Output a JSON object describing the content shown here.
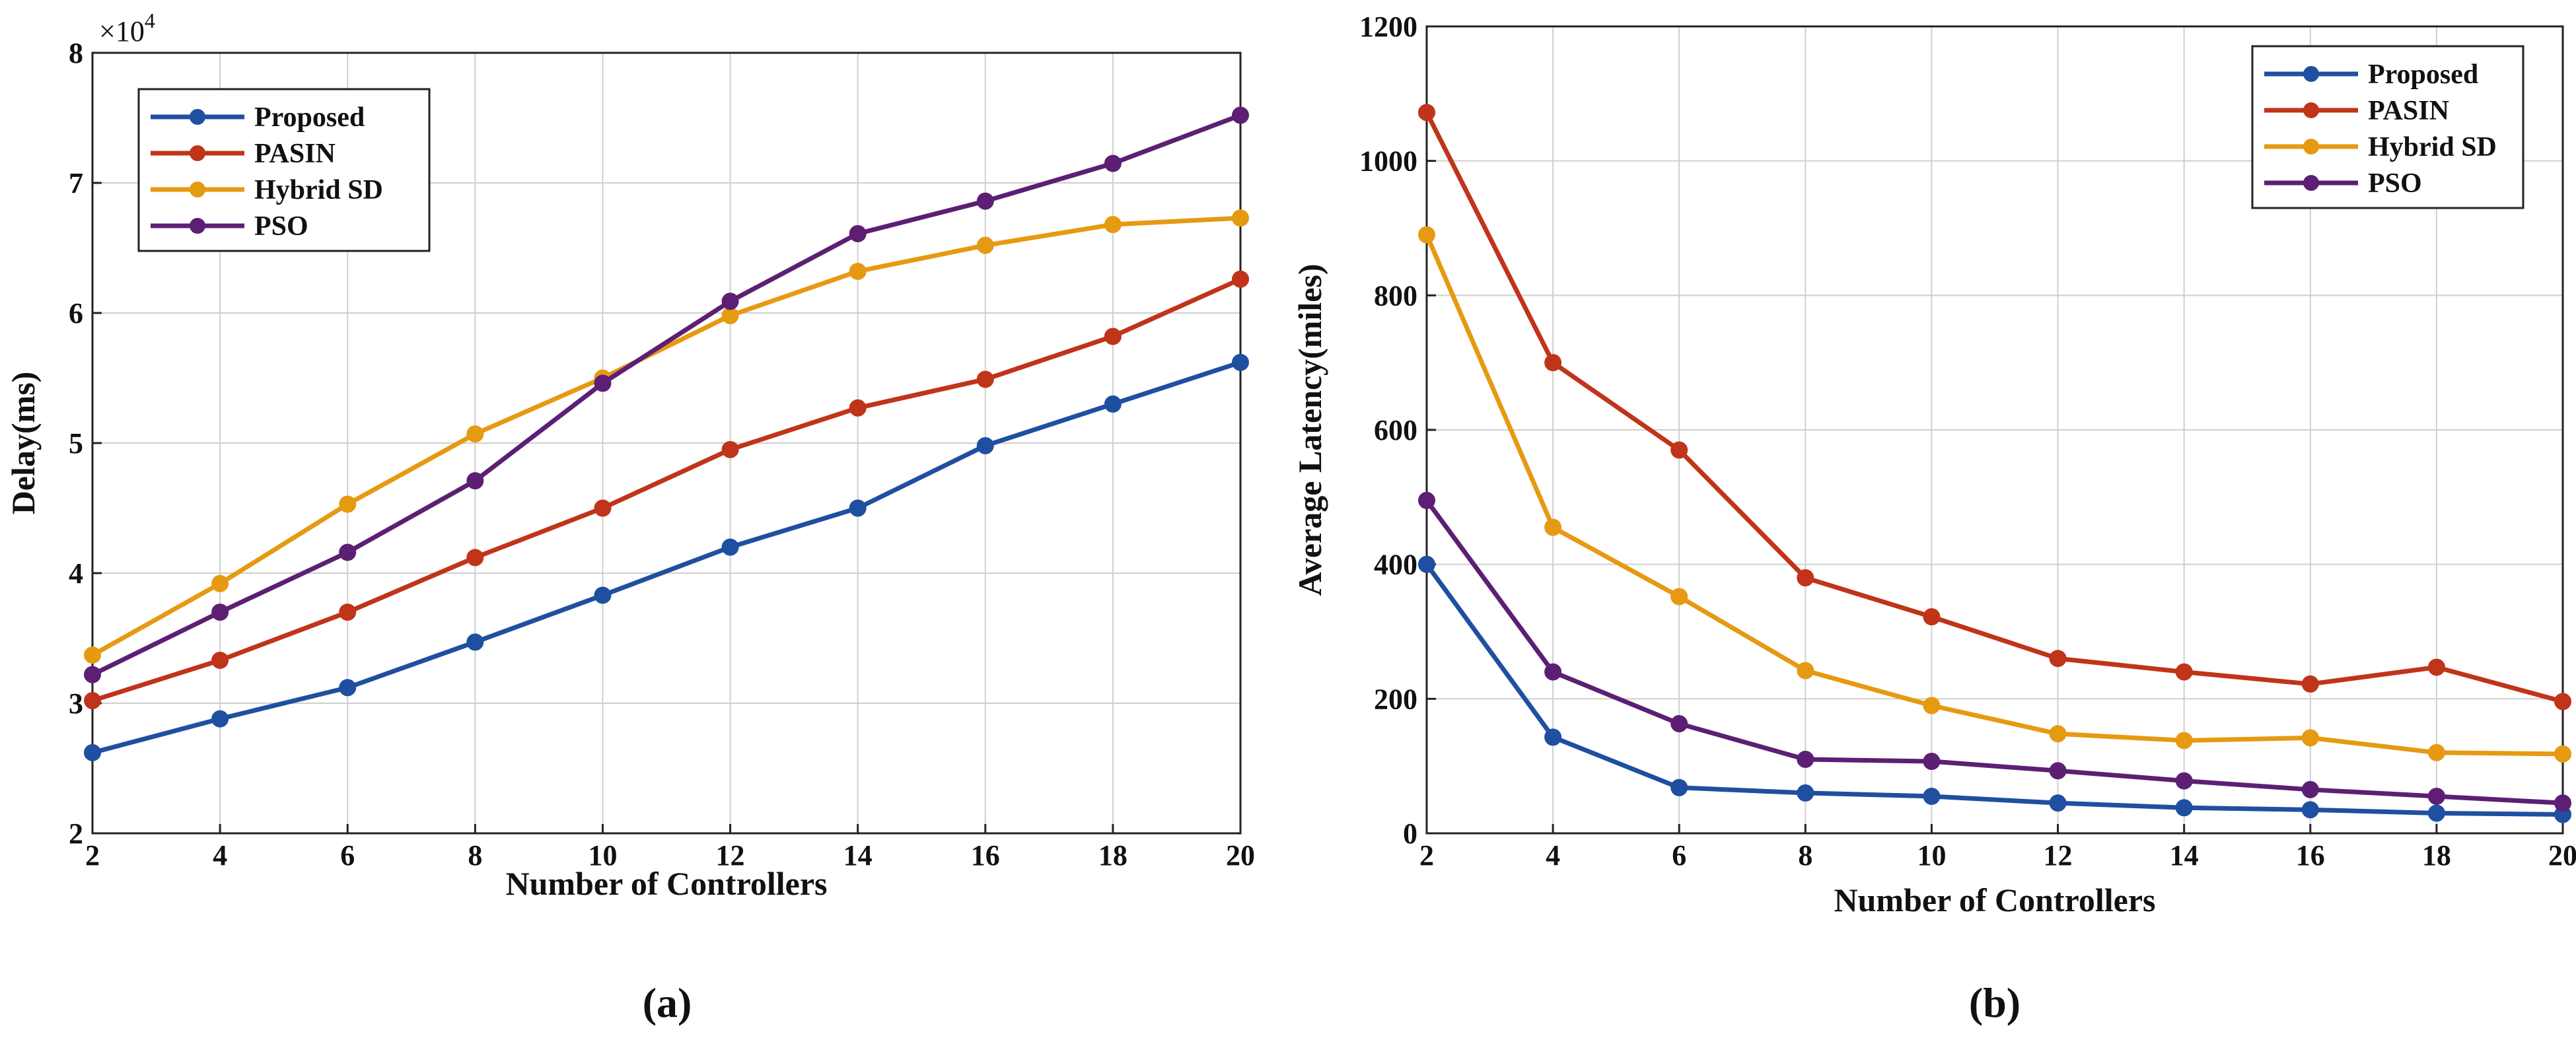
{
  "colors": {
    "Proposed": "#1f4fa0",
    "PASIN": "#c0341a",
    "Hybrid SD": "#e69a12",
    "PSO": "#5c1f73",
    "grid": "#cfcfcf",
    "axis": "#222222"
  },
  "chart_data": [
    {
      "type": "line",
      "panel_label": "(a)",
      "xlabel": "Number of Controllers",
      "ylabel": "Delay(ms)",
      "y_exponent_label": "×10",
      "y_exponent_power": "4",
      "x": [
        2,
        4,
        6,
        8,
        10,
        12,
        14,
        16,
        18,
        20
      ],
      "x_ticks": [
        "2",
        "4",
        "6",
        "8",
        "10",
        "12",
        "14",
        "16",
        "18",
        "20"
      ],
      "xlim": [
        2,
        20
      ],
      "ylim": [
        2,
        8
      ],
      "y_ticks": [
        "2",
        "3",
        "4",
        "5",
        "6",
        "7",
        "8"
      ],
      "y_tick_values": [
        2,
        3,
        4,
        5,
        6,
        7,
        8
      ],
      "grid": true,
      "legend_position": "top-left",
      "series": [
        {
          "name": "Proposed",
          "values": [
            2.62,
            2.88,
            3.12,
            3.47,
            3.83,
            4.2,
            4.5,
            4.98,
            5.3,
            5.62
          ]
        },
        {
          "name": "PASIN",
          "values": [
            3.02,
            3.33,
            3.7,
            4.12,
            4.5,
            4.95,
            5.27,
            5.49,
            5.82,
            6.26
          ]
        },
        {
          "name": "Hybrid SD",
          "values": [
            3.37,
            3.92,
            4.53,
            5.07,
            5.5,
            5.98,
            6.32,
            6.52,
            6.68,
            6.73
          ]
        },
        {
          "name": "PSO",
          "values": [
            3.22,
            3.7,
            4.16,
            4.71,
            5.46,
            6.09,
            6.61,
            6.86,
            7.15,
            7.52
          ]
        }
      ]
    },
    {
      "type": "line",
      "panel_label": "(b)",
      "xlabel": "Number of Controllers",
      "ylabel": "Average Latency(miles)",
      "x": [
        2,
        4,
        6,
        8,
        10,
        12,
        14,
        16,
        18,
        20
      ],
      "x_ticks": [
        "2",
        "4",
        "6",
        "8",
        "10",
        "12",
        "14",
        "16",
        "18",
        "20"
      ],
      "xlim": [
        2,
        20
      ],
      "ylim": [
        0,
        1200
      ],
      "y_ticks": [
        "0",
        "200",
        "400",
        "600",
        "800",
        "1000",
        "1200"
      ],
      "y_tick_values": [
        0,
        200,
        400,
        600,
        800,
        1000,
        1200
      ],
      "grid": true,
      "legend_position": "top-right",
      "series": [
        {
          "name": "Proposed",
          "values": [
            400,
            143,
            68,
            60,
            55,
            45,
            38,
            35,
            30,
            28
          ]
        },
        {
          "name": "PASIN",
          "values": [
            1072,
            700,
            570,
            380,
            322,
            260,
            240,
            222,
            247,
            196
          ]
        },
        {
          "name": "Hybrid SD",
          "values": [
            890,
            455,
            352,
            242,
            190,
            148,
            138,
            142,
            120,
            118
          ]
        },
        {
          "name": "PSO",
          "values": [
            495,
            240,
            163,
            110,
            107,
            93,
            78,
            65,
            55,
            45
          ]
        }
      ]
    }
  ]
}
